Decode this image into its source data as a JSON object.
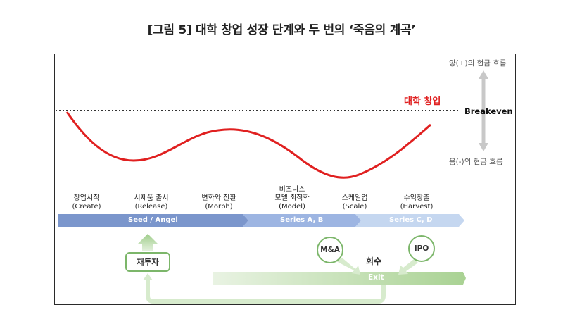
{
  "title": "[그림 5] 대학 창업 성장 단계와 두 번의 ‘죽음의 계곡’",
  "curve_label": "대학 창업",
  "breakeven_label": "Breakeven",
  "positive_cashflow": "양(+)의 현금 흐름",
  "negative_cashflow": "음(-)의 현금 흐름",
  "stages": [
    {
      "ko": "창업시작",
      "en": "(Create)"
    },
    {
      "ko": "시제품 출시",
      "en": "(Release)"
    },
    {
      "ko": "변화와 전환",
      "en": "(Morph)"
    },
    {
      "ko1": "비즈니스",
      "ko": "모델 최적화",
      "en": "(Model)"
    },
    {
      "ko": "스케일업",
      "en": "(Scale)"
    },
    {
      "ko": "수익창출",
      "en": "(Harvest)"
    }
  ],
  "bands": [
    "Seed / Angel",
    "Series A, B",
    "Series C, D"
  ],
  "exit_label": "Exit",
  "ma_label": "M&A",
  "ipo_label": "IPO",
  "recover_label": "회수",
  "reinvest_label": "재투자",
  "colors": {
    "curve": "#e02020",
    "band_dark": "#7b96cc",
    "band_light": "#b7cdee",
    "green": "#7cb66a",
    "green_light": "#d7ebcd"
  }
}
